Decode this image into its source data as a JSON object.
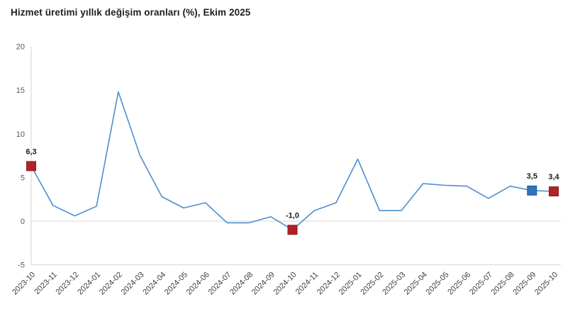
{
  "title": "Hizmet üretimi yıllık değişim oranları (%), Ekim 2025",
  "colors": {
    "line": "#4e8fcc",
    "marker_red": "#b02328",
    "marker_red_border": "#8c1b1f",
    "marker_blue": "#2e75b6",
    "marker_blue_border": "#1f5c96",
    "axis_line": "#d6d6d6",
    "zero_line": "#d9d9d9",
    "y_tick_text": "#595959",
    "x_tick_text": "#404040",
    "annotation_text": "#1a1a1a",
    "title_text": "#1f1f1f",
    "background": "#ffffff"
  },
  "chart_data": {
    "type": "line",
    "title": "Hizmet üretimi yıllık değişim oranları (%), Ekim 2025",
    "xlabel": "",
    "ylabel": "",
    "x": [
      "2023-10",
      "2023-11",
      "2023-12",
      "2024-01",
      "2024-02",
      "2024-03",
      "2024-04",
      "2024-05",
      "2024-06",
      "2024-07",
      "2024-08",
      "2024-09",
      "2024-10",
      "2024-11",
      "2024-12",
      "2025-01",
      "2025-02",
      "2025-03",
      "2025-04",
      "2025-05",
      "2025-06",
      "2025-07",
      "2025-08",
      "2025-09",
      "2025-10"
    ],
    "values": [
      6.3,
      1.8,
      0.6,
      1.7,
      14.8,
      7.5,
      2.8,
      1.5,
      2.1,
      -0.2,
      -0.2,
      0.5,
      -1.0,
      1.2,
      2.1,
      7.1,
      1.2,
      1.2,
      4.3,
      4.1,
      4.0,
      2.6,
      4.0,
      3.5,
      3.4
    ],
    "ylim": [
      -5,
      20
    ],
    "yticks": [
      20,
      15,
      10,
      5,
      0,
      -5
    ],
    "grid": "zero-line-only",
    "legend_position": "none",
    "annotations": [
      {
        "x": "2023-10",
        "value": 6.3,
        "label": "6,3",
        "marker": "red-square"
      },
      {
        "x": "2024-10",
        "value": -1.0,
        "label": "-1,0",
        "marker": "red-square"
      },
      {
        "x": "2025-09",
        "value": 3.5,
        "label": "3,5",
        "marker": "blue-square"
      },
      {
        "x": "2025-10",
        "value": 3.4,
        "label": "3,4",
        "marker": "red-square"
      }
    ]
  }
}
